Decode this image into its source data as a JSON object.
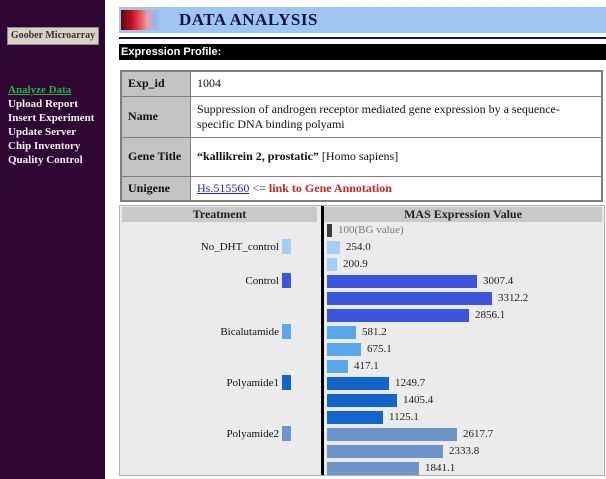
{
  "sidebar": {
    "brand": "Goober Microarray",
    "items": [
      {
        "label": "Analyze Data",
        "active": true
      },
      {
        "label": "Upload Report",
        "active": false
      },
      {
        "label": "Insert Experiment",
        "active": false
      },
      {
        "label": "Update Server",
        "active": false
      },
      {
        "label": "Chip Inventory",
        "active": false
      },
      {
        "label": "Quality Control",
        "active": false
      }
    ]
  },
  "header": {
    "title": "DATA ANALYSIS"
  },
  "section": {
    "title": "Expression Profile:"
  },
  "table": {
    "rows": [
      {
        "key": "Exp_id",
        "value": "1004"
      },
      {
        "key": "Name",
        "value": "Suppression of androgen receptor mediated gene expression by a sequence-specific DNA binding polyami"
      },
      {
        "key": "Gene Title",
        "value_bold": "“kallikrein 2, prostatic”",
        "value_rest": " [Homo sapiens]"
      },
      {
        "key": "Unigene",
        "link": "Hs.515560",
        "arrow": "<=",
        "note": "link to Gene Annotation"
      }
    ]
  },
  "colors": {
    "sidebar_bg": "#2f0633",
    "header_band_blue": "#9fc5f1",
    "active_link_green": "#1fba3a",
    "link_blue": "#2222cc",
    "annotation_red": "#cc2222",
    "chart_bg": "#ebebeb"
  },
  "chart_data": {
    "type": "bar",
    "orientation": "horizontal",
    "col_headers": [
      "Treatment",
      "MAS Expression Value"
    ],
    "xmax": 3312.2,
    "grid": false,
    "background_bar": {
      "label": "100(BG value)",
      "value": 100,
      "color": "#3a3a3a"
    },
    "groups": [
      {
        "treatment": "No_DHT_control",
        "color": "#a6cdf2",
        "values": [
          254.0,
          200.9
        ]
      },
      {
        "treatment": "Control",
        "color": "#3d55de",
        "values": [
          3007.4,
          3312.2,
          2856.1
        ]
      },
      {
        "treatment": "Bicalutamide",
        "color": "#56a8ea",
        "values": [
          581.2,
          675.1,
          417.1
        ]
      },
      {
        "treatment": "Polyamide1",
        "color": "#1365cb",
        "values": [
          1249.7,
          1405.4,
          1125.1
        ]
      },
      {
        "treatment": "Polyamide2",
        "color": "#6d95c9",
        "values": [
          2617.7,
          2333.8,
          1841.1
        ]
      }
    ]
  }
}
